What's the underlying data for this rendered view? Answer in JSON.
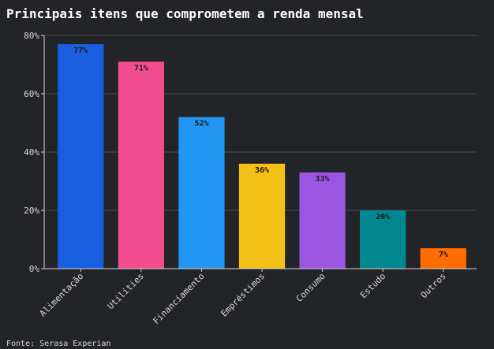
{
  "chart_data": {
    "type": "bar",
    "title": "Principais itens que comprometem a renda mensal",
    "categories": [
      "Alimentação",
      "Utilities",
      "Financiamento",
      "Empréstimos",
      "Consumo",
      "Estudo",
      "Outros"
    ],
    "values": [
      77,
      71,
      52,
      36,
      33,
      20,
      7
    ],
    "value_labels": [
      "77%",
      "71%",
      "52%",
      "36%",
      "33%",
      "20%",
      "7%"
    ],
    "colors": [
      "#1a5fe0",
      "#f24d8e",
      "#2196f3",
      "#f5c017",
      "#9b55e0",
      "#00878f",
      "#ff6d00"
    ],
    "yticks": [
      0,
      20,
      40,
      60,
      80
    ],
    "ytick_labels": [
      "0%",
      "20%",
      "40%",
      "60%",
      "80%"
    ],
    "ylim": [
      0,
      80
    ],
    "grid": true,
    "xlabel": "",
    "ylabel": ""
  },
  "footer": {
    "source": "Fonte: Serasa Experian"
  }
}
